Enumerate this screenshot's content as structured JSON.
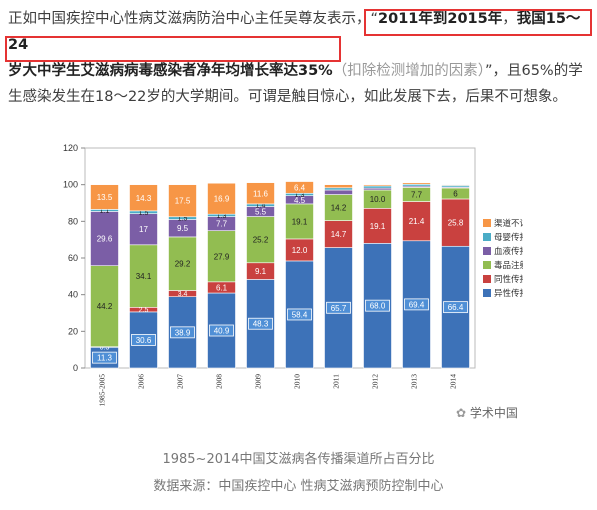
{
  "article": {
    "p1": "正如中国疾控中心性病艾滋病防治中心主任吴尊友表示，",
    "quote_open": "“",
    "bold1": "2011年到2015年",
    "sep": "，",
    "bold2": "我国15～24",
    "bold3": "岁大中学生艾滋病病毒感染者净年均增长率达35%",
    "note": "（扣除检测增加的因素）",
    "p2": "”，且65%的学",
    "p3": "生感染发生在18～22岁的大学期间。可谓是触目惊心，如此发展下去，后果不可想象。"
  },
  "caption": {
    "line1": "1985~2014中国艾滋病各传播渠道所占百分比",
    "line2": "数据来源：中国疾控中心 性病艾滋病预防控制中心"
  },
  "watermark": "学术中国",
  "colors": {
    "hetero": "#3d72b8",
    "homo": "#c9413f",
    "drug": "#92bd51",
    "blood": "#7b5ea6",
    "mother": "#4bacc6",
    "unknown": "#f79646",
    "highlight": "#e53333"
  },
  "chart_data": {
    "type": "bar",
    "stacked": true,
    "categories": [
      "1985-2005",
      "2006",
      "2007",
      "2008",
      "2009",
      "2010",
      "2011",
      "2012",
      "2013",
      "2014"
    ],
    "ylim": [
      0,
      120
    ],
    "yticks": [
      0,
      20,
      40,
      60,
      80,
      100,
      120
    ],
    "legend_position": "right",
    "series": [
      {
        "name": "异性传播",
        "color_key": "hetero",
        "values": [
          11.3,
          30.6,
          38.9,
          40.9,
          48.3,
          58.4,
          65.7,
          68.0,
          69.4,
          66.4
        ],
        "labels": [
          "11.3",
          "30.6",
          "38.9",
          "40.9",
          "48.3",
          "58.4",
          "65.7",
          "68.0",
          "69.4",
          "66.4"
        ]
      },
      {
        "name": "同性传播",
        "color_key": "homo",
        "values": [
          0.3,
          2.5,
          3.4,
          6.1,
          9.1,
          12.0,
          14.7,
          19.1,
          21.4,
          25.8
        ],
        "labels": [
          "0.3",
          "2.5",
          "3.4",
          "6.1",
          "9.1",
          "12.0",
          "14.7",
          "19.1",
          "21.4",
          "25.8"
        ]
      },
      {
        "name": "毒品注射",
        "color_key": "drug",
        "values": [
          44.2,
          34.1,
          29.2,
          27.9,
          25.2,
          19.1,
          14.2,
          10.0,
          7.7,
          6.0
        ],
        "labels": [
          "44.2",
          "34.1",
          "29.2",
          "27.9",
          "25.2",
          "19.1",
          "14.2",
          "10.0",
          "7.7",
          "6"
        ]
      },
      {
        "name": "血液传播",
        "color_key": "blood",
        "values": [
          29.6,
          17.0,
          9.5,
          7.7,
          5.5,
          4.5,
          2.5,
          1.0,
          0.7,
          0.5
        ],
        "labels": [
          "29.6",
          "17",
          "9.5",
          "7.7",
          "5.5",
          "4.5",
          "",
          "",
          "",
          ""
        ]
      },
      {
        "name": "母婴传播",
        "color_key": "mother",
        "values": [
          1.1,
          1.5,
          1.5,
          1.3,
          1.4,
          1.3,
          1.2,
          1.2,
          1.0,
          0.9
        ],
        "labels": [
          "1.1",
          "1.5",
          "1.5",
          "1.3",
          "1.4",
          "1.3",
          "",
          "",
          "",
          ""
        ]
      },
      {
        "name": "渠道不详",
        "color_key": "unknown",
        "values": [
          13.5,
          14.3,
          17.5,
          16.9,
          11.6,
          6.4,
          1.7,
          0.7,
          0.8,
          0.4
        ],
        "labels": [
          "13.5",
          "14.3",
          "17.5",
          "16.9",
          "11.6",
          "6.4",
          "",
          "",
          "",
          ""
        ]
      }
    ],
    "legend_order": [
      "渠道不详",
      "母婴传播",
      "血液传播",
      "毒品注射",
      "同性传播",
      "异性传播"
    ]
  }
}
